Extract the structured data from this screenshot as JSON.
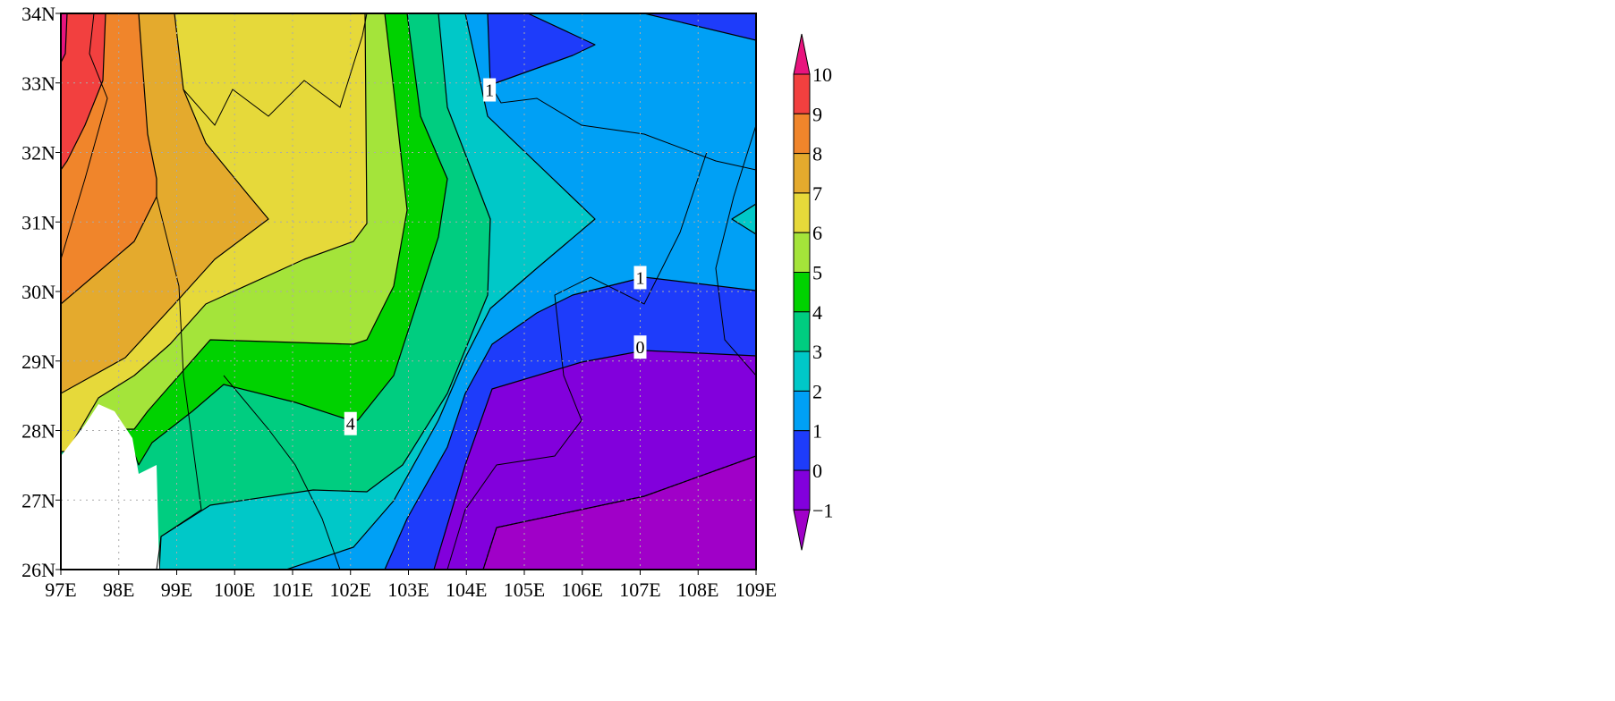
{
  "chart_data": {
    "type": "contour",
    "x_ticks": [
      "97E",
      "98E",
      "99E",
      "100E",
      "101E",
      "102E",
      "103E",
      "104E",
      "105E",
      "106E",
      "107E",
      "108E",
      "109E"
    ],
    "y_ticks": [
      "34N",
      "33N",
      "32N",
      "31N",
      "30N",
      "29N",
      "28N",
      "27N",
      "26N"
    ],
    "xlim": [
      97,
      109
    ],
    "ylim": [
      26,
      34
    ],
    "grid": true,
    "colorbar": {
      "placement": "right",
      "levels": [
        "10",
        "9",
        "8",
        "7",
        "6",
        "5",
        "4",
        "3",
        "2",
        "1",
        "0",
        "−1"
      ],
      "colors": [
        "#e8147e",
        "#f2403f",
        "#f0852b",
        "#e4aa2d",
        "#e6d93a",
        "#a4e43a",
        "#00d200",
        "#00cd80",
        "#00c8c8",
        "#00a0f5",
        "#1e3cfa",
        "#8200dc",
        "#a000c8"
      ],
      "extend": "both"
    },
    "contour_labels": [
      {
        "text": "1",
        "lon": 104.4,
        "lat": 32.9
      },
      {
        "text": "1",
        "lon": 107.0,
        "lat": 30.2
      },
      {
        "text": "0",
        "lon": 107.0,
        "lat": 29.2
      },
      {
        "text": "4",
        "lon": 102.0,
        "lat": 28.1
      }
    ],
    "no_data_color": "#ffffff"
  }
}
